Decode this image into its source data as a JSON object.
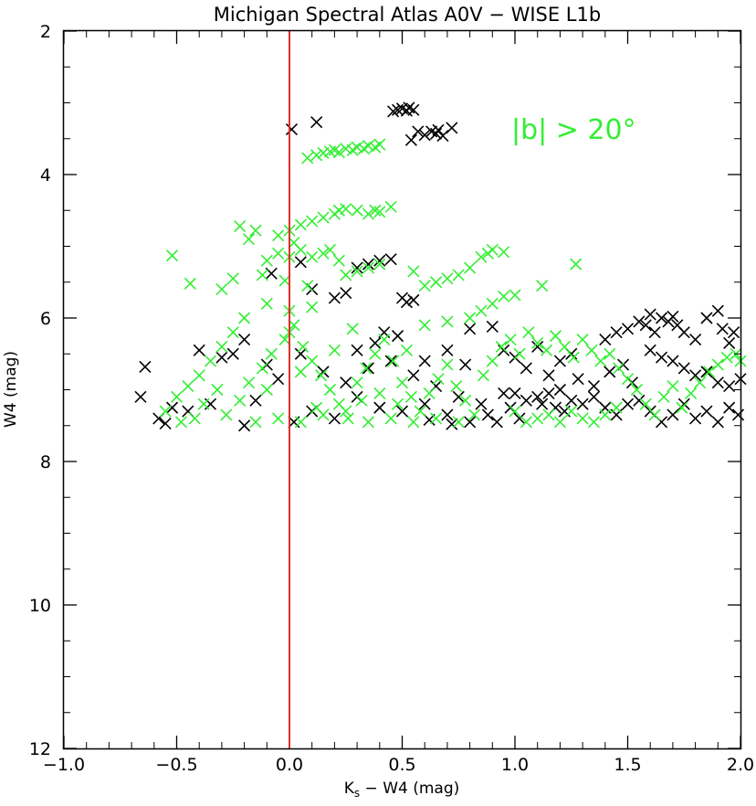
{
  "chart_data": {
    "type": "scatter",
    "title": "Michigan Spectral Atlas A0V − WISE L1b",
    "xlabel": "K",
    "xlabel_sub": "s",
    "xlabel_rest": " − W4 (mag)",
    "ylabel": "W4 (mag)",
    "xlim": [
      -1.0,
      2.0
    ],
    "ylim": [
      12,
      2
    ],
    "y_inverted": true,
    "x_ticks": [
      -1.0,
      -0.5,
      0.0,
      0.5,
      1.0,
      1.5,
      2.0
    ],
    "x_tick_labels": [
      "−1.0",
      "−0.5",
      "0.0",
      "0.5",
      "1.0",
      "1.5",
      "2.0"
    ],
    "y_ticks": [
      2,
      4,
      6,
      8,
      10,
      12
    ],
    "y_tick_labels": [
      "2",
      "4",
      "6",
      "8",
      "10",
      "12"
    ],
    "grid": false,
    "vertical_line": {
      "x": 0.0,
      "color": "#e0302a"
    },
    "annotation": {
      "text": "|b| > 20°",
      "color": "#33ee33"
    },
    "marker": "x",
    "series": [
      {
        "color": "#000000",
        "points": [
          [
            0.01,
            3.37
          ],
          [
            0.12,
            3.27
          ],
          [
            0.46,
            3.12
          ],
          [
            0.48,
            3.1
          ],
          [
            0.5,
            3.08
          ],
          [
            0.52,
            3.11
          ],
          [
            0.53,
            3.07
          ],
          [
            0.55,
            3.1
          ],
          [
            0.54,
            3.52
          ],
          [
            0.57,
            3.4
          ],
          [
            0.6,
            3.45
          ],
          [
            0.63,
            3.4
          ],
          [
            0.65,
            3.43
          ],
          [
            0.66,
            3.38
          ],
          [
            0.68,
            3.46
          ],
          [
            0.72,
            3.35
          ],
          [
            -0.08,
            5.38
          ],
          [
            0.05,
            5.22
          ],
          [
            0.3,
            5.3
          ],
          [
            0.35,
            5.25
          ],
          [
            0.4,
            5.2
          ],
          [
            0.45,
            5.18
          ],
          [
            0.2,
            5.72
          ],
          [
            0.25,
            5.65
          ],
          [
            0.5,
            5.72
          ],
          [
            0.52,
            5.78
          ],
          [
            0.55,
            5.75
          ],
          [
            0.1,
            5.6
          ],
          [
            0.42,
            6.2
          ],
          [
            0.48,
            6.25
          ],
          [
            -0.64,
            6.68
          ],
          [
            -0.66,
            7.1
          ],
          [
            -0.58,
            7.4
          ],
          [
            -0.55,
            7.47
          ],
          [
            -0.52,
            7.25
          ],
          [
            -0.4,
            6.45
          ],
          [
            -0.25,
            6.5
          ],
          [
            -0.2,
            6.3
          ],
          [
            -0.3,
            6.55
          ],
          [
            0.9,
            6.12
          ],
          [
            0.95,
            6.45
          ],
          [
            1.0,
            6.55
          ],
          [
            1.1,
            6.4
          ],
          [
            1.05,
            6.7
          ],
          [
            1.15,
            6.8
          ],
          [
            1.2,
            6.6
          ],
          [
            1.25,
            6.5
          ],
          [
            0.8,
            6.15
          ],
          [
            1.4,
            6.3
          ],
          [
            1.45,
            6.2
          ],
          [
            1.5,
            6.15
          ],
          [
            1.55,
            6.05
          ],
          [
            1.58,
            6.1
          ],
          [
            1.6,
            5.95
          ],
          [
            1.62,
            6.2
          ],
          [
            1.65,
            6.0
          ],
          [
            1.68,
            6.05
          ],
          [
            1.7,
            5.98
          ],
          [
            1.72,
            6.1
          ],
          [
            1.75,
            6.2
          ],
          [
            1.8,
            6.3
          ],
          [
            1.85,
            6.0
          ],
          [
            1.9,
            5.9
          ],
          [
            1.92,
            6.15
          ],
          [
            1.95,
            6.35
          ],
          [
            1.97,
            6.2
          ],
          [
            1.6,
            6.45
          ],
          [
            1.65,
            6.55
          ],
          [
            1.7,
            6.6
          ],
          [
            1.75,
            6.7
          ],
          [
            1.8,
            6.8
          ],
          [
            1.85,
            6.75
          ],
          [
            1.9,
            6.9
          ],
          [
            1.95,
            6.95
          ],
          [
            2.0,
            6.85
          ],
          [
            1.0,
            7.05
          ],
          [
            1.05,
            7.15
          ],
          [
            1.1,
            7.1
          ],
          [
            1.12,
            7.2
          ],
          [
            1.15,
            7.05
          ],
          [
            1.18,
            7.25
          ],
          [
            1.2,
            7.0
          ],
          [
            1.22,
            7.3
          ],
          [
            1.25,
            7.15
          ],
          [
            1.3,
            7.2
          ],
          [
            1.35,
            7.1
          ],
          [
            1.4,
            7.25
          ],
          [
            1.45,
            7.35
          ],
          [
            1.5,
            7.2
          ],
          [
            1.55,
            7.15
          ],
          [
            0.85,
            7.2
          ],
          [
            0.88,
            7.35
          ],
          [
            0.92,
            7.45
          ],
          [
            0.95,
            7.05
          ],
          [
            0.98,
            7.25
          ],
          [
            1.02,
            7.4
          ],
          [
            1.6,
            7.3
          ],
          [
            1.65,
            7.45
          ],
          [
            1.7,
            7.35
          ],
          [
            1.75,
            7.2
          ],
          [
            1.8,
            7.4
          ],
          [
            1.85,
            7.3
          ],
          [
            1.9,
            7.45
          ],
          [
            1.95,
            7.25
          ],
          [
            1.99,
            7.35
          ],
          [
            -0.45,
            7.3
          ],
          [
            -0.35,
            7.2
          ],
          [
            -0.15,
            7.15
          ],
          [
            0.1,
            7.3
          ],
          [
            0.2,
            7.4
          ],
          [
            0.3,
            7.1
          ],
          [
            0.4,
            7.25
          ],
          [
            0.5,
            7.3
          ],
          [
            0.6,
            7.2
          ],
          [
            0.7,
            7.35
          ],
          [
            0.75,
            7.1
          ],
          [
            0.65,
            6.95
          ],
          [
            0.55,
            6.8
          ],
          [
            0.45,
            6.6
          ],
          [
            0.35,
            6.7
          ],
          [
            0.25,
            6.9
          ],
          [
            0.15,
            6.75
          ],
          [
            -0.05,
            6.85
          ],
          [
            -0.1,
            6.65
          ],
          [
            0.05,
            6.5
          ],
          [
            0.3,
            6.45
          ],
          [
            0.38,
            6.35
          ],
          [
            0.6,
            6.6
          ],
          [
            0.7,
            6.45
          ],
          [
            0.78,
            6.65
          ],
          [
            0.8,
            7.45
          ],
          [
            0.72,
            7.48
          ],
          [
            0.62,
            7.42
          ],
          [
            0.02,
            7.45
          ],
          [
            -0.2,
            7.5
          ],
          [
            1.28,
            6.85
          ],
          [
            1.35,
            6.95
          ],
          [
            1.42,
            6.75
          ],
          [
            1.48,
            6.65
          ],
          [
            1.52,
            6.9
          ]
        ]
      },
      {
        "color": "#33ee33",
        "points": [
          [
            0.08,
            3.77
          ],
          [
            0.12,
            3.73
          ],
          [
            0.15,
            3.7
          ],
          [
            0.18,
            3.68
          ],
          [
            0.2,
            3.66
          ],
          [
            0.22,
            3.69
          ],
          [
            0.25,
            3.64
          ],
          [
            0.28,
            3.66
          ],
          [
            0.3,
            3.62
          ],
          [
            0.33,
            3.64
          ],
          [
            0.35,
            3.6
          ],
          [
            0.38,
            3.62
          ],
          [
            0.4,
            3.58
          ],
          [
            0.0,
            4.78
          ],
          [
            0.05,
            4.7
          ],
          [
            0.1,
            4.65
          ],
          [
            0.15,
            4.6
          ],
          [
            0.2,
            4.55
          ],
          [
            0.22,
            4.5
          ],
          [
            0.25,
            4.48
          ],
          [
            0.3,
            4.5
          ],
          [
            0.35,
            4.55
          ],
          [
            0.38,
            4.5
          ],
          [
            0.4,
            4.52
          ],
          [
            0.45,
            4.45
          ],
          [
            -0.05,
            4.85
          ],
          [
            -0.15,
            4.78
          ],
          [
            -0.22,
            4.72
          ],
          [
            -0.18,
            4.9
          ],
          [
            0.02,
            4.95
          ],
          [
            -0.52,
            5.13
          ],
          [
            -0.44,
            5.52
          ],
          [
            -0.3,
            5.6
          ],
          [
            -0.25,
            5.45
          ],
          [
            -0.1,
            5.2
          ],
          [
            -0.05,
            5.1
          ],
          [
            0.0,
            5.15
          ],
          [
            0.05,
            5.05
          ],
          [
            0.1,
            5.15
          ],
          [
            0.15,
            5.1
          ],
          [
            0.18,
            5.05
          ],
          [
            0.22,
            5.2
          ],
          [
            0.25,
            5.4
          ],
          [
            0.3,
            5.35
          ],
          [
            0.35,
            5.3
          ],
          [
            0.4,
            5.25
          ],
          [
            -0.12,
            5.4
          ],
          [
            -0.02,
            5.48
          ],
          [
            0.08,
            5.55
          ],
          [
            0.6,
            5.55
          ],
          [
            0.65,
            5.5
          ],
          [
            0.7,
            5.45
          ],
          [
            0.75,
            5.4
          ],
          [
            0.8,
            5.3
          ],
          [
            0.85,
            5.15
          ],
          [
            0.88,
            5.1
          ],
          [
            0.9,
            5.05
          ],
          [
            0.95,
            5.08
          ],
          [
            0.55,
            5.35
          ],
          [
            1.12,
            5.55
          ],
          [
            1.27,
            5.25
          ],
          [
            0.95,
            5.7
          ],
          [
            1.0,
            5.68
          ],
          [
            0.9,
            5.8
          ],
          [
            0.85,
            5.9
          ],
          [
            0.8,
            6.0
          ],
          [
            0.7,
            6.05
          ],
          [
            0.6,
            6.1
          ],
          [
            -0.1,
            5.8
          ],
          [
            0.0,
            5.9
          ],
          [
            0.1,
            5.85
          ],
          [
            -0.2,
            6.0
          ],
          [
            -0.25,
            6.2
          ],
          [
            -0.3,
            6.4
          ],
          [
            -0.35,
            6.6
          ],
          [
            -0.4,
            6.8
          ],
          [
            -0.45,
            6.95
          ],
          [
            -0.5,
            7.1
          ],
          [
            -0.55,
            7.3
          ],
          [
            -0.48,
            7.45
          ],
          [
            -0.42,
            7.4
          ],
          [
            -0.38,
            7.2
          ],
          [
            -0.32,
            7.0
          ],
          [
            -0.28,
            7.35
          ],
          [
            -0.22,
            7.15
          ],
          [
            -0.18,
            6.9
          ],
          [
            -0.12,
            6.7
          ],
          [
            -0.08,
            6.5
          ],
          [
            -0.02,
            6.3
          ],
          [
            0.02,
            6.1
          ],
          [
            0.06,
            6.4
          ],
          [
            0.1,
            6.6
          ],
          [
            0.14,
            6.8
          ],
          [
            0.18,
            7.0
          ],
          [
            0.22,
            7.2
          ],
          [
            0.26,
            7.4
          ],
          [
            0.3,
            6.9
          ],
          [
            0.34,
            6.7
          ],
          [
            0.38,
            6.5
          ],
          [
            0.42,
            6.3
          ],
          [
            0.46,
            6.6
          ],
          [
            0.5,
            6.9
          ],
          [
            0.54,
            7.1
          ],
          [
            0.58,
            7.3
          ],
          [
            0.62,
            7.05
          ],
          [
            0.66,
            6.85
          ],
          [
            0.7,
            6.65
          ],
          [
            0.74,
            6.95
          ],
          [
            0.78,
            7.15
          ],
          [
            0.82,
            7.35
          ],
          [
            0.86,
            6.8
          ],
          [
            0.9,
            6.6
          ],
          [
            0.94,
            6.4
          ],
          [
            0.98,
            6.3
          ],
          [
            1.02,
            6.5
          ],
          [
            1.06,
            6.2
          ],
          [
            1.1,
            6.35
          ],
          [
            1.14,
            6.45
          ],
          [
            1.18,
            6.25
          ],
          [
            1.22,
            6.4
          ],
          [
            1.26,
            6.55
          ],
          [
            1.3,
            6.3
          ],
          [
            1.34,
            6.45
          ],
          [
            1.38,
            6.6
          ],
          [
            1.42,
            6.5
          ],
          [
            1.46,
            6.7
          ],
          [
            1.5,
            6.85
          ],
          [
            1.54,
            7.0
          ],
          [
            1.58,
            7.2
          ],
          [
            1.62,
            7.35
          ],
          [
            1.66,
            7.1
          ],
          [
            1.7,
            6.95
          ],
          [
            1.74,
            7.25
          ],
          [
            1.78,
            7.05
          ],
          [
            1.82,
            6.9
          ],
          [
            1.86,
            6.75
          ],
          [
            1.9,
            6.65
          ],
          [
            1.94,
            6.55
          ],
          [
            1.98,
            6.5
          ],
          [
            2.0,
            6.6
          ],
          [
            1.0,
            7.3
          ],
          [
            1.05,
            7.45
          ],
          [
            1.1,
            7.4
          ],
          [
            1.15,
            7.35
          ],
          [
            1.2,
            7.45
          ],
          [
            1.25,
            7.3
          ],
          [
            1.3,
            7.4
          ],
          [
            1.35,
            7.45
          ],
          [
            1.4,
            7.35
          ],
          [
            1.45,
            7.25
          ],
          [
            -0.15,
            7.45
          ],
          [
            -0.05,
            7.4
          ],
          [
            0.05,
            7.45
          ],
          [
            0.15,
            7.35
          ],
          [
            0.25,
            7.3
          ],
          [
            0.35,
            7.45
          ],
          [
            0.45,
            7.4
          ],
          [
            0.55,
            7.45
          ],
          [
            0.65,
            7.4
          ],
          [
            0.75,
            7.45
          ],
          [
            0.0,
            6.2
          ],
          [
            0.05,
            6.75
          ],
          [
            -0.1,
            7.0
          ],
          [
            0.12,
            7.25
          ],
          [
            0.2,
            6.45
          ],
          [
            0.28,
            6.15
          ],
          [
            0.32,
            7.15
          ],
          [
            0.4,
            7.05
          ],
          [
            0.48,
            7.2
          ],
          [
            0.52,
            6.45
          ]
        ]
      }
    ]
  }
}
